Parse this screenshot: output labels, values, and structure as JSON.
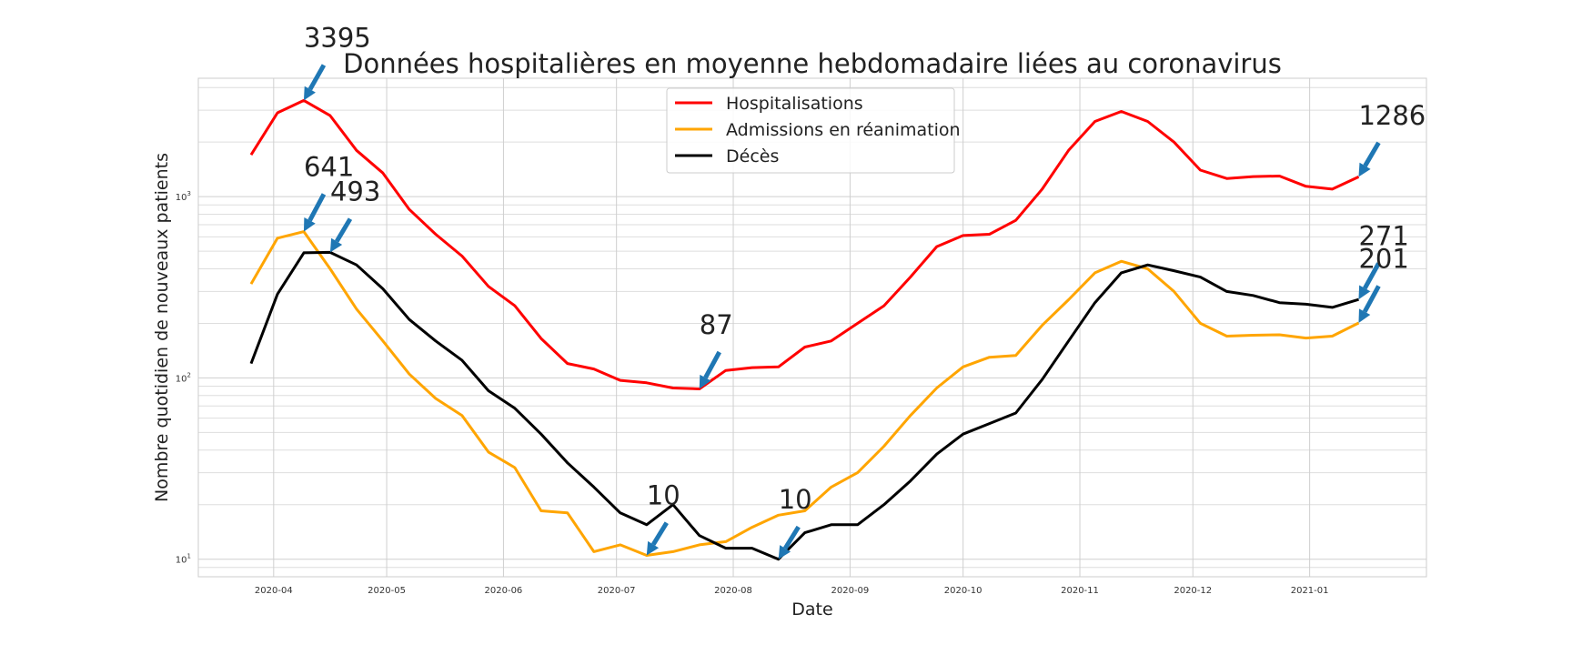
{
  "chart_data": {
    "type": "line",
    "title": "Données hospitalières en moyenne hebdomadaire liées au coronavirus",
    "xlabel": "Date",
    "ylabel": "Nombre quotidien de nouveaux patients",
    "yscale": "log",
    "ylim": [
      8,
      4500
    ],
    "xlim": [
      "2020-03-12",
      "2021-02-01"
    ],
    "grid": true,
    "legend_position": "top-center",
    "x_ticks": [
      "2020-04",
      "2020-05",
      "2020-06",
      "2020-07",
      "2020-08",
      "2020-09",
      "2020-10",
      "2020-11",
      "2020-12",
      "2021-01"
    ],
    "y_ticks": [
      {
        "value": 10,
        "base": "10",
        "exp": "1"
      },
      {
        "value": 100,
        "base": "10",
        "exp": "2"
      },
      {
        "value": 1000,
        "base": "10",
        "exp": "3"
      }
    ],
    "x": [
      "2020-03-26",
      "2020-04-02",
      "2020-04-09",
      "2020-04-16",
      "2020-04-23",
      "2020-04-30",
      "2020-05-07",
      "2020-05-14",
      "2020-05-21",
      "2020-05-28",
      "2020-06-04",
      "2020-06-11",
      "2020-06-18",
      "2020-06-25",
      "2020-07-02",
      "2020-07-09",
      "2020-07-16",
      "2020-07-23",
      "2020-07-30",
      "2020-08-06",
      "2020-08-13",
      "2020-08-20",
      "2020-08-27",
      "2020-09-03",
      "2020-09-10",
      "2020-09-17",
      "2020-09-24",
      "2020-10-01",
      "2020-10-08",
      "2020-10-15",
      "2020-10-22",
      "2020-10-29",
      "2020-11-05",
      "2020-11-12",
      "2020-11-19",
      "2020-11-26",
      "2020-12-03",
      "2020-12-10",
      "2020-12-17",
      "2020-12-24",
      "2020-12-31",
      "2021-01-07",
      "2021-01-14"
    ],
    "series": [
      {
        "name": "Hospitalisations",
        "color": "#ff0000",
        "values": [
          1700,
          2900,
          3395,
          2800,
          1800,
          1350,
          850,
          620,
          470,
          320,
          250,
          165,
          120,
          112,
          97,
          94,
          88,
          87,
          110,
          114,
          115,
          148,
          160,
          200,
          250,
          360,
          530,
          610,
          620,
          740,
          1100,
          1800,
          2600,
          2950,
          2600,
          2000,
          1400,
          1260,
          1290,
          1300,
          1140,
          1100,
          1286
        ]
      },
      {
        "name": "Admissions en réanimation",
        "color": "#ffa500",
        "values": [
          330,
          590,
          641,
          400,
          240,
          160,
          105,
          77,
          62,
          39,
          32,
          18.5,
          18,
          11,
          12,
          10.5,
          11,
          12,
          12.5,
          15,
          17.5,
          18.5,
          25,
          30,
          42,
          62,
          88,
          115,
          130,
          133,
          195,
          270,
          380,
          440,
          400,
          300,
          200,
          170,
          172,
          173,
          166,
          170,
          201
        ]
      },
      {
        "name": "Décès",
        "color": "#000000",
        "values": [
          120,
          290,
          490,
          493,
          420,
          310,
          210,
          160,
          125,
          85,
          68,
          49,
          34,
          25,
          18,
          15.5,
          20,
          13.5,
          11.5,
          11.5,
          10,
          14,
          15.5,
          15.5,
          20,
          27,
          38,
          49,
          56,
          64,
          98,
          160,
          260,
          380,
          420,
          390,
          360,
          300,
          285,
          260,
          255,
          245,
          271
        ]
      }
    ],
    "annotations": [
      {
        "text": "3395",
        "x": "2020-04-09",
        "y": 3395,
        "text_x": "2020-04-09",
        "text_y": 6700,
        "series": "Hospitalisations"
      },
      {
        "text": "641",
        "x": "2020-04-09",
        "y": 641,
        "text_x": "2020-04-09",
        "text_y": 1300,
        "series": "Admissions en réanimation"
      },
      {
        "text": "493",
        "x": "2020-04-16",
        "y": 493,
        "text_x": "2020-04-16",
        "text_y": 950,
        "series": "Décès"
      },
      {
        "text": "87",
        "x": "2020-07-23",
        "y": 87,
        "text_x": "2020-07-23",
        "text_y": 175,
        "series": "Hospitalisations"
      },
      {
        "text": "10",
        "x": "2020-07-09",
        "y": 10.5,
        "text_x": "2020-07-09",
        "text_y": 20,
        "series": "Admissions en réanimation"
      },
      {
        "text": "10",
        "x": "2020-08-13",
        "y": 10,
        "text_x": "2020-08-13",
        "text_y": 19,
        "series": "Décès"
      },
      {
        "text": "1286",
        "x": "2021-01-14",
        "y": 1286,
        "text_x": "2021-01-14",
        "text_y": 2500,
        "series": "Hospitalisations"
      },
      {
        "text": "271",
        "x": "2021-01-14",
        "y": 271,
        "text_x": "2021-01-14",
        "text_y": 540,
        "series": "Décès"
      },
      {
        "text": "201",
        "x": "2021-01-14",
        "y": 201,
        "text_x": "2021-01-14",
        "text_y": 405,
        "series": "Admissions en réanimation"
      }
    ],
    "annotation_arrow_color": "#1f77b4"
  }
}
